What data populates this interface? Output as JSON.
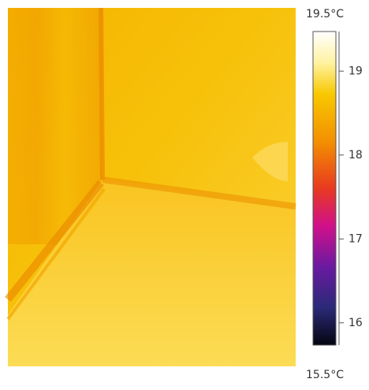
{
  "scale": {
    "max_label": "19.5°C",
    "min_label": "15.5°C",
    "range": [
      15.5,
      19.5
    ],
    "ticks": [
      16,
      17,
      18,
      19
    ]
  }
}
